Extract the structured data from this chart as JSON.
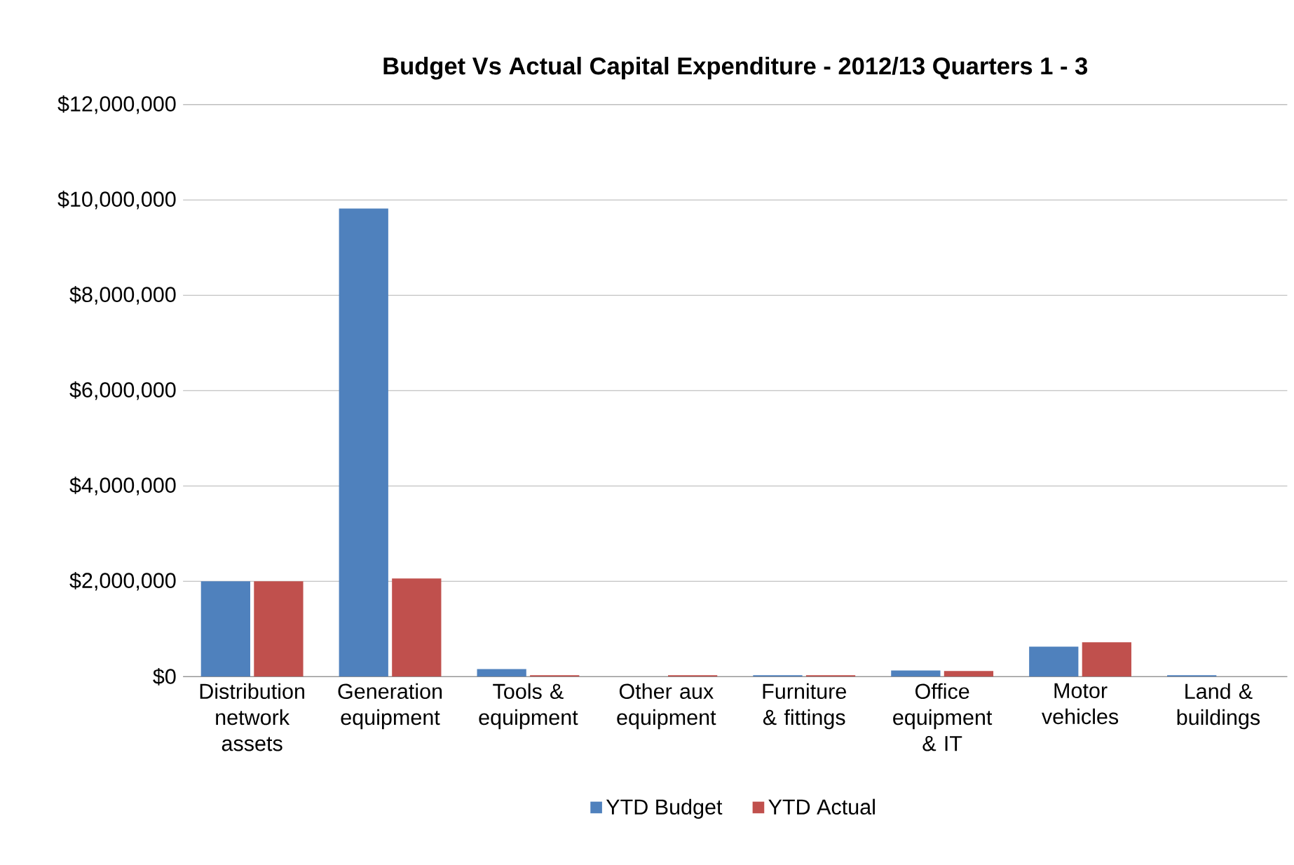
{
  "chart_data": {
    "type": "bar",
    "title": "Budget Vs Actual Capital Expenditure - 2012/13 Quarters 1 - 3",
    "categories": [
      "Distribution network assets",
      "Generation equipment",
      "Tools & equipment",
      "Other aux equipment",
      "Furniture & fittings",
      "Office equipment & IT",
      "Motor vehicles",
      "Land & buildings"
    ],
    "series": [
      {
        "name": "YTD Budget",
        "color": "#4f81bd",
        "values": [
          2000000,
          9820000,
          160000,
          0,
          30000,
          130000,
          630000,
          30000
        ]
      },
      {
        "name": "YTD Actual",
        "color": "#c0504d",
        "values": [
          2000000,
          2060000,
          30000,
          30000,
          30000,
          120000,
          720000,
          0
        ]
      }
    ],
    "ylim": [
      0,
      12000000
    ],
    "yticks": [
      {
        "value": 0,
        "label": "$0"
      },
      {
        "value": 2000000,
        "label": "$2,000,000"
      },
      {
        "value": 4000000,
        "label": "$4,000,000"
      },
      {
        "value": 6000000,
        "label": "$6,000,000"
      },
      {
        "value": 8000000,
        "label": "$8,000,000"
      },
      {
        "value": 10000000,
        "label": "$10,000,000"
      },
      {
        "value": 12000000,
        "label": "$12,000,000"
      }
    ],
    "grid": "y",
    "legend": "bottom"
  }
}
